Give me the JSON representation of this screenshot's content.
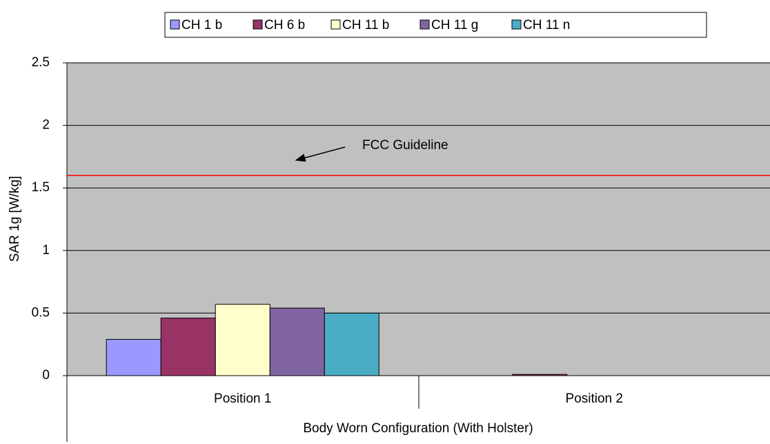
{
  "chart_data": {
    "type": "bar",
    "categories": [
      "Position 1",
      "Position 2"
    ],
    "xlabel": "Body Worn Configuration (With Holster)",
    "ylabel": "SAR 1g [W/kg]",
    "series": [
      {
        "name": "CH 1 b",
        "color": "#9999ff",
        "values": [
          0.29,
          0
        ]
      },
      {
        "name": "CH 6 b",
        "color": "#993366",
        "values": [
          0.46,
          0.01
        ]
      },
      {
        "name": "CH 11 b",
        "color": "#ffffcc",
        "values": [
          0.57,
          0
        ]
      },
      {
        "name": "CH 11 g",
        "color": "#8064a2",
        "values": [
          0.54,
          0
        ]
      },
      {
        "name": "CH 11 n",
        "color": "#4bacc6",
        "values": [
          0.5,
          0
        ]
      }
    ],
    "ylim": [
      0,
      2.5
    ],
    "yticks": [
      0,
      0.5,
      1,
      1.5,
      2,
      2.5
    ],
    "grid": true,
    "reference_line": {
      "value": 1.6,
      "color": "#ff0000"
    },
    "annotation": "FCC Guideline",
    "legend": "top"
  }
}
